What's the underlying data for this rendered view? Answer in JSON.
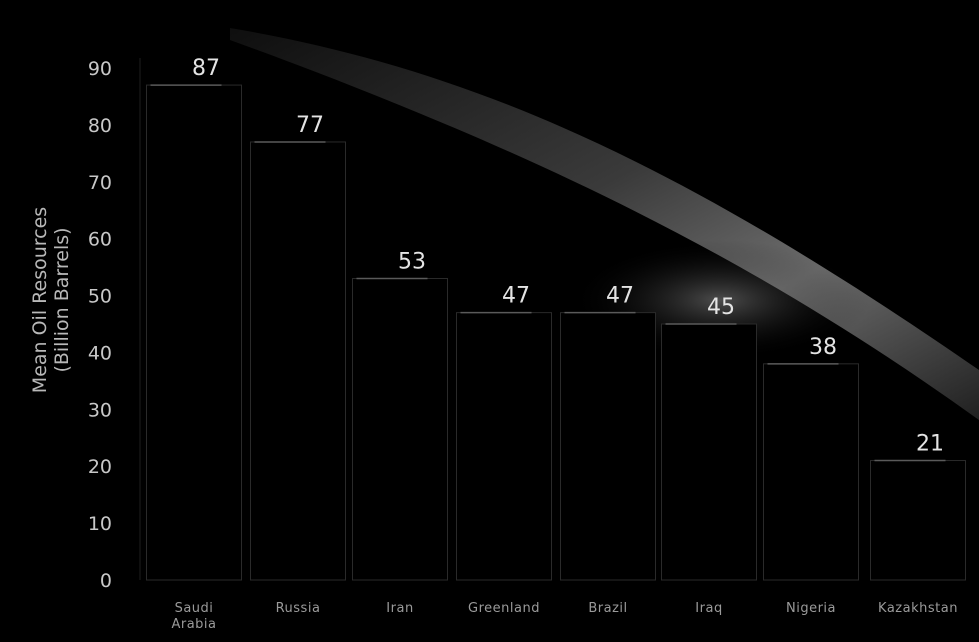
{
  "chart_data": {
    "type": "bar",
    "categories": [
      "Saudi Arabia",
      "Russia",
      "Iran",
      "Greenland",
      "Brazil",
      "Iraq",
      "Nigeria",
      "Kazakhstan"
    ],
    "category_lines": [
      [
        "Saudi",
        "Arabia"
      ],
      [
        "Russia"
      ],
      [
        "Iran"
      ],
      [
        "Greenland"
      ],
      [
        "Brazil"
      ],
      [
        "Iraq"
      ],
      [
        "Nigeria"
      ],
      [
        "Kazakhstan"
      ]
    ],
    "values": [
      87,
      77,
      53,
      47,
      47,
      45,
      38,
      21
    ],
    "value_labels": [
      "87",
      "77",
      "53",
      "47",
      "47",
      "45",
      "38",
      "21"
    ],
    "ylabel_lines": [
      "Mean Oil Resources",
      "(Billion Barrels)"
    ],
    "yticks": [
      0,
      10,
      20,
      30,
      40,
      50,
      60,
      70,
      80,
      90
    ],
    "ytick_labels": [
      "0",
      "10",
      "20",
      "30",
      "40",
      "50",
      "60",
      "70",
      "80",
      "90"
    ],
    "ylim": [
      0,
      90
    ],
    "grid": false,
    "legend": "none",
    "colors": {
      "background": "#000000",
      "bar": "#000000",
      "bar_edge": "#2a2a2a",
      "highlight": "#bdbdbd"
    }
  }
}
